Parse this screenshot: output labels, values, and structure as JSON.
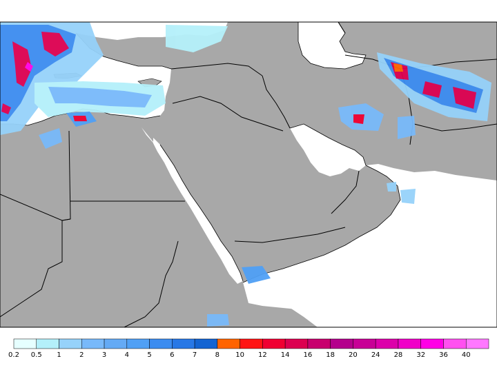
{
  "colors": {
    "land": "#a8a8a8",
    "water": "#ffffff",
    "border": "#000000"
  },
  "legend": {
    "ticks": [
      "0.2",
      "0.5",
      "1",
      "2",
      "3",
      "4",
      "5",
      "6",
      "7",
      "8",
      "10",
      "12",
      "14",
      "16",
      "18",
      "20",
      "24",
      "28",
      "32",
      "36",
      "40"
    ],
    "swatches": [
      "#e6ffff",
      "#b4f0fa",
      "#96d2fa",
      "#78b9fa",
      "#64aaf5",
      "#50a0f5",
      "#3c8cf0",
      "#2878e6",
      "#1464d2",
      "#ff6400",
      "#ff1414",
      "#f00032",
      "#dc0050",
      "#c8006e",
      "#b4008c",
      "#c80096",
      "#dc00aa",
      "#f000c8",
      "#ff00e6",
      "#ff50f0",
      "#ff78ff"
    ]
  },
  "precip_areas": [
    {
      "region": "aegean-balkans",
      "level": "high"
    },
    {
      "region": "eastern-mediterranean",
      "level": "low"
    },
    {
      "region": "libya-coast",
      "level": "medium"
    },
    {
      "region": "northern-iran",
      "level": "high"
    },
    {
      "region": "western-iran",
      "level": "medium"
    },
    {
      "region": "yemen",
      "level": "low"
    },
    {
      "region": "ethiopia",
      "level": "low"
    },
    {
      "region": "oman-coast",
      "level": "low"
    }
  ]
}
